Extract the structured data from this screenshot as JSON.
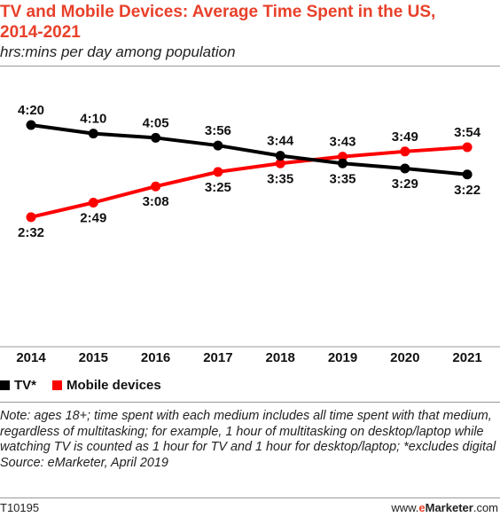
{
  "title": "TV and Mobile Devices: Average Time Spent in the US, 2014-2021",
  "subtitle": "hrs:mins per day among population",
  "legend": {
    "tv": "TV*",
    "mobile": "Mobile devices"
  },
  "note": "Note: ages 18+; time spent with each medium includes all time spent with that medium, regardless of multitasking; for example, 1 hour of multitasking on desktop/laptop while watching TV is counted as 1 hour for TV and 1 hour for desktop/laptop; *excludes digital",
  "source": "Source: eMarketer, April 2019",
  "footer": {
    "id": "T10195",
    "brand_prefix": "www.",
    "brand_e": "e",
    "brand_marketer": "Marketer",
    "brand_suffix": ".com"
  },
  "colors": {
    "tv": "#000000",
    "mobile": "#ff0000",
    "title": "#e8402a",
    "axis": "#9a9a9a"
  },
  "chart_data": {
    "type": "line",
    "categories": [
      "2014",
      "2015",
      "2016",
      "2017",
      "2018",
      "2019",
      "2020",
      "2021"
    ],
    "series": [
      {
        "key": "tv",
        "name": "TV*",
        "values": [
          260,
          250,
          245,
          236,
          224,
          215,
          209,
          202
        ],
        "labels": [
          "4:20",
          "4:10",
          "4:05",
          "3:56",
          "3:44",
          "3:35",
          "3:29",
          "3:22"
        ]
      },
      {
        "key": "mobile",
        "name": "Mobile devices",
        "values": [
          152,
          169,
          188,
          205,
          215,
          223,
          229,
          234
        ],
        "labels": [
          "2:32",
          "2:49",
          "3:08",
          "3:25",
          "3:35",
          "3:43",
          "3:49",
          "3:54"
        ]
      }
    ],
    "ylim": [
      0,
      290
    ]
  }
}
